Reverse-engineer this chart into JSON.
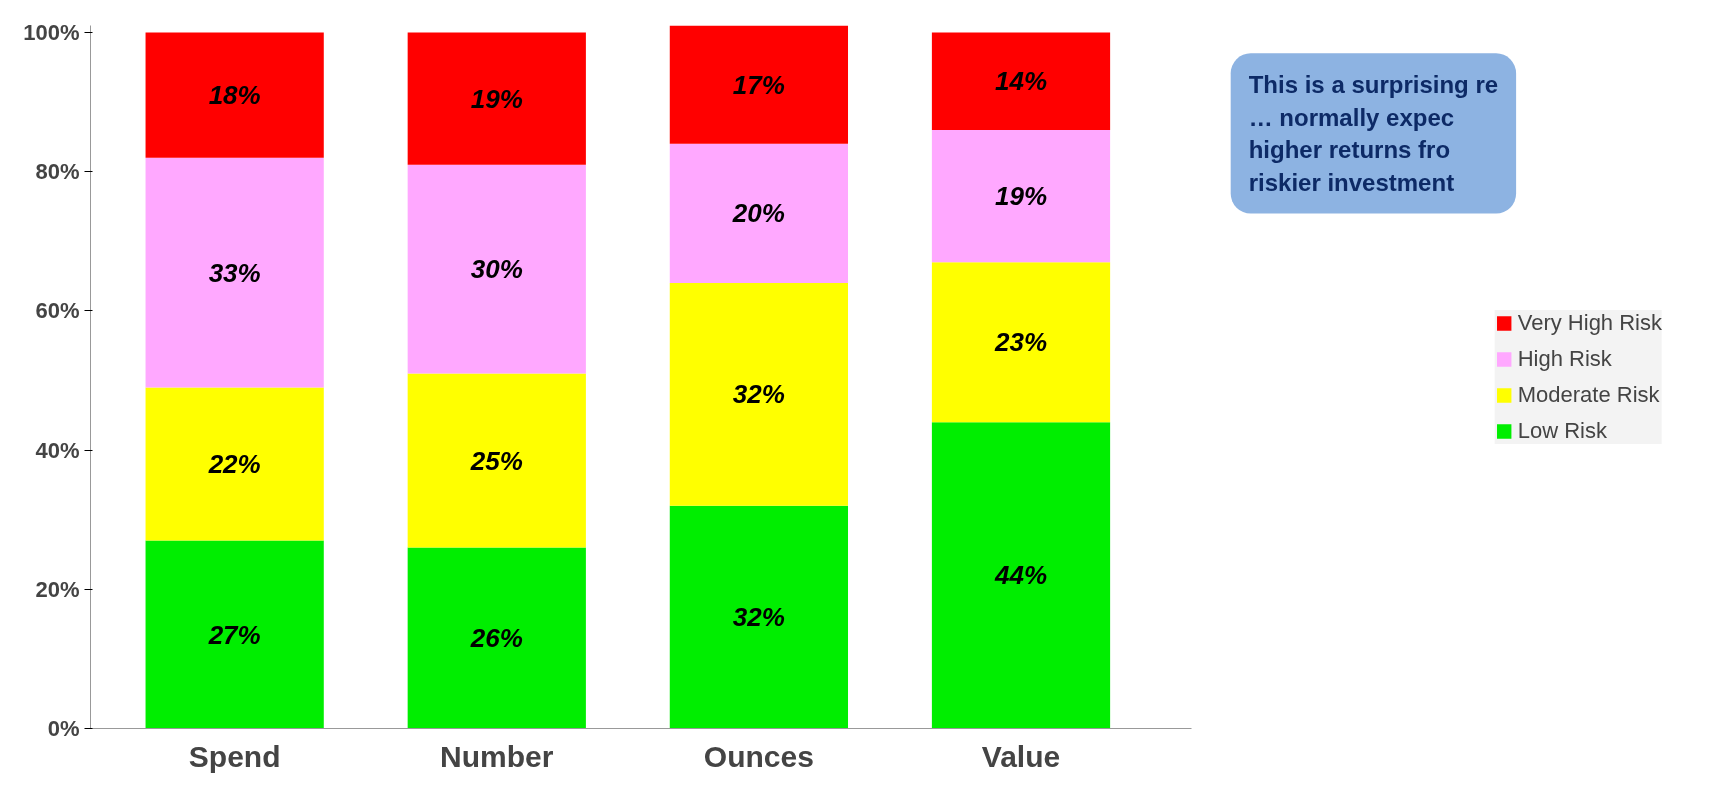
{
  "chart_data": {
    "type": "bar",
    "stacked": true,
    "grid": false,
    "legend": "right",
    "categories": [
      "Spend",
      "Number",
      "Ounces",
      "Value"
    ],
    "series": [
      {
        "name": "Low Risk",
        "color": "#00ee00",
        "values": [
          27,
          26,
          32,
          44
        ],
        "value_labels": [
          "27%",
          "26%",
          "32%",
          "44%"
        ]
      },
      {
        "name": "Moderate Risk",
        "color": "#ffff00",
        "values": [
          22,
          25,
          32,
          23
        ],
        "value_labels": [
          "22%",
          "25%",
          "32%",
          "23%"
        ]
      },
      {
        "name": "High Risk",
        "color": "#ffa8ff",
        "values": [
          33,
          30,
          20,
          19
        ],
        "value_labels": [
          "33%",
          "30%",
          "20%",
          "19%"
        ]
      },
      {
        "name": "Very High Risk",
        "color": "#ff0000",
        "values": [
          18,
          19,
          17,
          14
        ],
        "value_labels": [
          "18%",
          "19%",
          "17%",
          "14%"
        ]
      }
    ],
    "ylim": [
      0,
      101
    ],
    "yticks": [
      {
        "value": 0,
        "label": "0%"
      },
      {
        "value": 20,
        "label": "20%"
      },
      {
        "value": 40,
        "label": "40%"
      },
      {
        "value": 60,
        "label": "60%"
      },
      {
        "value": 80,
        "label": "80%"
      },
      {
        "value": 100,
        "label": "100%"
      }
    ],
    "annotations": [
      "This is a surprising re\n… normally expec\nhigher returns  fro\nriskier investment"
    ]
  }
}
